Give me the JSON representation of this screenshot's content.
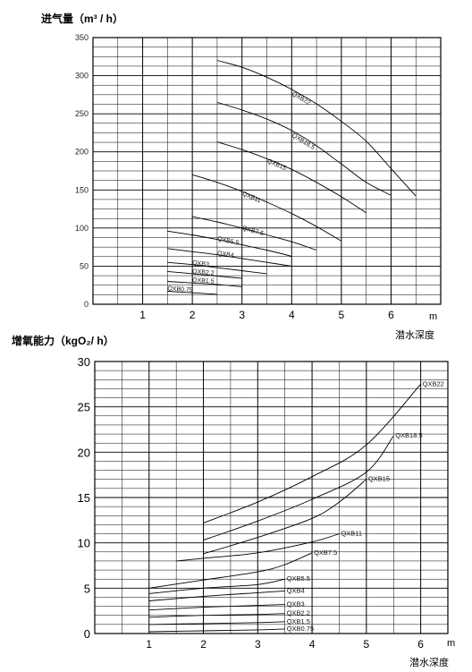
{
  "chart_data": [
    {
      "type": "line",
      "title": "进气量（m³ / h）",
      "xlabel": "潜水深度",
      "xunit": "m",
      "xlim": [
        0,
        7
      ],
      "ylim": [
        0,
        350
      ],
      "x_ticks": [
        1,
        2,
        3,
        4,
        5,
        6
      ],
      "y_ticks": [
        0,
        50,
        100,
        150,
        200,
        250,
        300,
        350
      ],
      "grid": true,
      "series": [
        {
          "name": "QXB22",
          "x": [
            2.5,
            3.0,
            3.5,
            4.0,
            4.5,
            5.0,
            5.5,
            6.0,
            6.5
          ],
          "y": [
            320,
            311,
            298,
            282,
            263,
            240,
            214,
            178,
            142
          ]
        },
        {
          "name": "QXB18.5",
          "x": [
            2.5,
            3.0,
            3.5,
            4.0,
            4.5,
            5.0,
            5.5,
            6.0
          ],
          "y": [
            265,
            255,
            243,
            228,
            208,
            184,
            160,
            143
          ]
        },
        {
          "name": "QXB15",
          "x": [
            2.5,
            3.0,
            3.5,
            4.0,
            4.5,
            5.0,
            5.5
          ],
          "y": [
            213,
            203,
            191,
            177,
            160,
            141,
            120
          ]
        },
        {
          "name": "QXB11",
          "x": [
            2.0,
            2.5,
            3.0,
            3.5,
            4.0,
            4.5,
            5.0
          ],
          "y": [
            170,
            160,
            148,
            134,
            119,
            102,
            83
          ]
        },
        {
          "name": "QXB7.5",
          "x": [
            2.0,
            2.5,
            3.0,
            3.5,
            4.0,
            4.5
          ],
          "y": [
            115,
            108,
            100,
            91,
            82,
            71
          ]
        },
        {
          "name": "QXB5.5",
          "x": [
            1.5,
            2.0,
            2.5,
            3.0,
            3.5,
            4.0
          ],
          "y": [
            96,
            91,
            85,
            78,
            71,
            63
          ]
        },
        {
          "name": "QXB4",
          "x": [
            1.5,
            2.0,
            2.5,
            3.0,
            3.5,
            4.0
          ],
          "y": [
            73,
            69,
            65,
            60,
            55,
            50
          ]
        },
        {
          "name": "QXB3",
          "x": [
            1.5,
            2.0,
            2.5,
            3.0,
            3.5
          ],
          "y": [
            55,
            52,
            48,
            44,
            40
          ]
        },
        {
          "name": "QXB2.2",
          "x": [
            1.5,
            2.0,
            2.5,
            3.0
          ],
          "y": [
            43,
            40,
            37,
            34
          ]
        },
        {
          "name": "QXB1.5",
          "x": [
            1.5,
            2.0,
            2.5,
            3.0
          ],
          "y": [
            30,
            28,
            26,
            23
          ]
        },
        {
          "name": "QXB0.75",
          "x": [
            1.5,
            2.0,
            2.5
          ],
          "y": [
            17,
            15,
            13
          ]
        }
      ]
    },
    {
      "type": "line",
      "title": "增氧能力（kgO₂/ h）",
      "xlabel": "潜水深度",
      "xunit": "m",
      "xlim": [
        0,
        6.5
      ],
      "ylim": [
        0,
        30
      ],
      "x_ticks": [
        1,
        2,
        3,
        4,
        5,
        6
      ],
      "y_ticks": [
        0,
        5,
        10,
        15,
        20,
        25,
        30
      ],
      "grid": true,
      "series": [
        {
          "name": "QXB22",
          "x": [
            2.0,
            3.0,
            4.0,
            5.0,
            6.0
          ],
          "y": [
            12.2,
            14.5,
            17.3,
            20.8,
            27.5
          ]
        },
        {
          "name": "QXB18.5",
          "x": [
            2.0,
            3.0,
            4.0,
            5.0,
            5.5
          ],
          "y": [
            10.3,
            12.4,
            14.8,
            17.8,
            21.8
          ]
        },
        {
          "name": "QXB15",
          "x": [
            2.0,
            3.0,
            4.0,
            4.5,
            5.0
          ],
          "y": [
            8.8,
            10.6,
            12.7,
            14.5,
            17.0
          ]
        },
        {
          "name": "QXB11",
          "x": [
            1.5,
            2.0,
            3.0,
            4.0,
            4.5
          ],
          "y": [
            8.0,
            8.3,
            8.9,
            10.1,
            11.0
          ]
        },
        {
          "name": "QXB7.5",
          "x": [
            1.0,
            2.0,
            3.0,
            3.5,
            4.0
          ],
          "y": [
            5.0,
            5.9,
            6.8,
            7.6,
            8.9
          ]
        },
        {
          "name": "QXB5.5",
          "x": [
            1.0,
            2.0,
            3.0,
            3.5
          ],
          "y": [
            4.4,
            5.0,
            5.4,
            6.0
          ]
        },
        {
          "name": "QXB4",
          "x": [
            1.0,
            2.0,
            3.0,
            3.5
          ],
          "y": [
            3.6,
            4.1,
            4.5,
            4.7
          ]
        },
        {
          "name": "QXB3",
          "x": [
            1.0,
            2.0,
            3.0,
            3.5
          ],
          "y": [
            2.6,
            2.9,
            3.1,
            3.2
          ]
        },
        {
          "name": "QXB2.2",
          "x": [
            1.0,
            2.0,
            3.0,
            3.5
          ],
          "y": [
            1.8,
            2.0,
            2.1,
            2.2
          ]
        },
        {
          "name": "QXB1.5",
          "x": [
            1.0,
            2.0,
            3.0,
            3.5
          ],
          "y": [
            1.0,
            1.1,
            1.2,
            1.3
          ]
        },
        {
          "name": "QXB0.75",
          "x": [
            1.0,
            2.0,
            3.0,
            3.5
          ],
          "y": [
            0.2,
            0.3,
            0.4,
            0.5
          ]
        }
      ]
    }
  ]
}
